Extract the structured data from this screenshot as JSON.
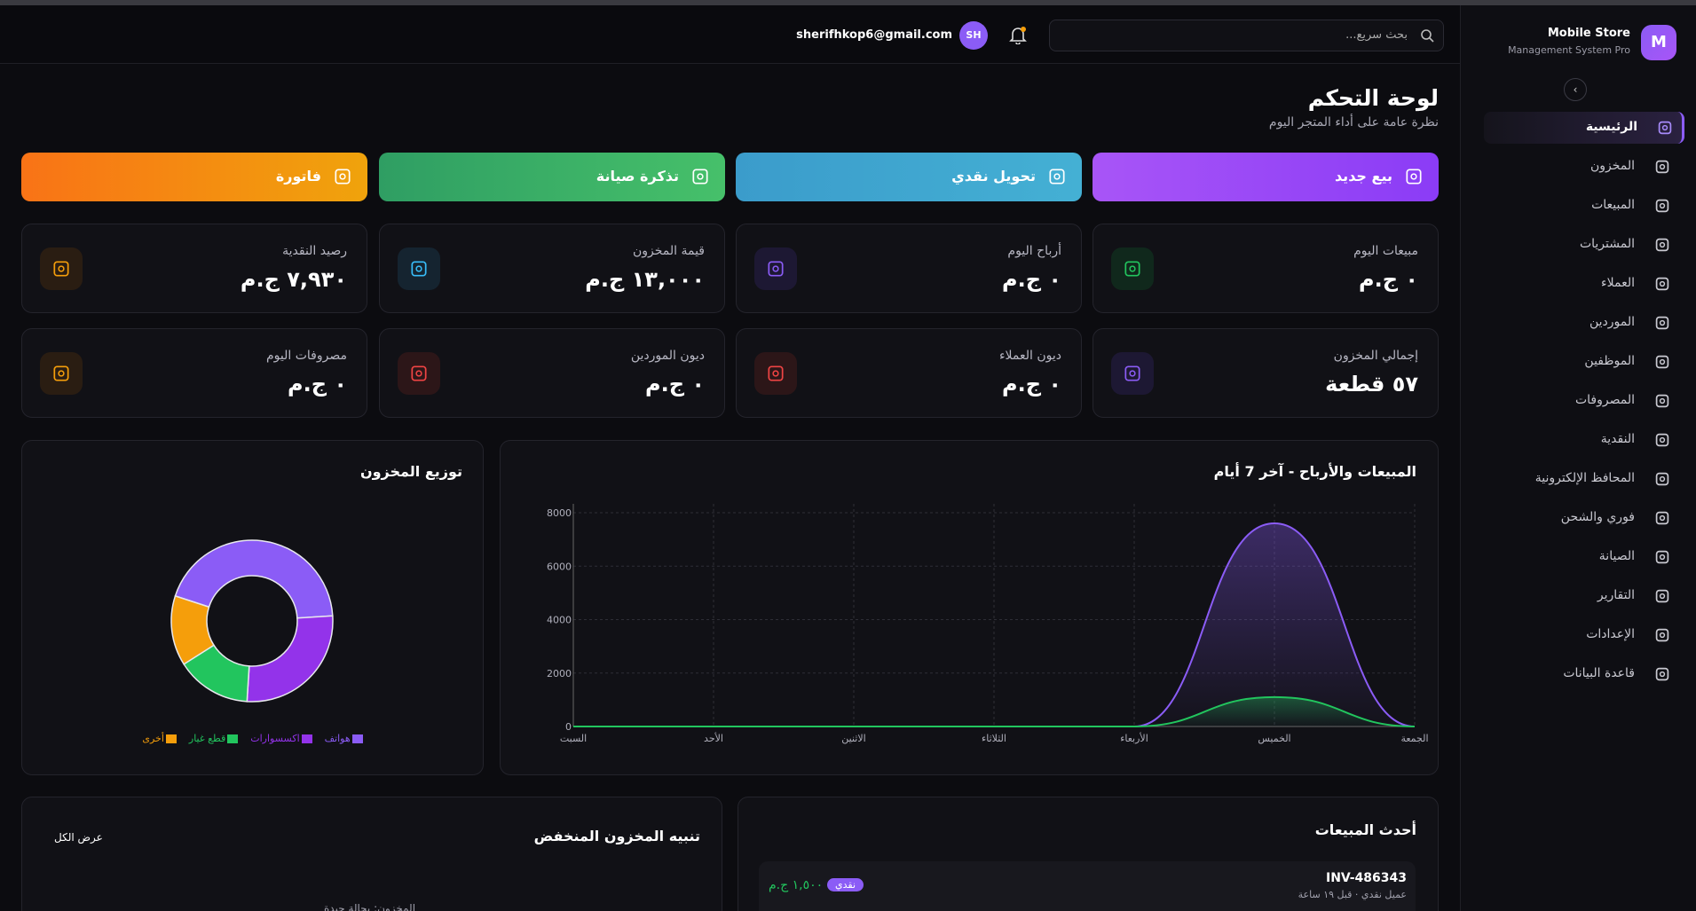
{
  "sidebar": {
    "logo": "M",
    "brand": "Mobile Store",
    "tagline": "Management System Pro",
    "nav": [
      "الرئيسية",
      "المخزون",
      "المبيعات",
      "المشتريات",
      "العملاء",
      "الموردين",
      "الموظفين",
      "المصروفات",
      "النقدية",
      "المحافظ الإلكترونية",
      "فوري والشحن",
      "الصيانة",
      "التقارير",
      "الإعدادات",
      "قاعدة البيانات"
    ]
  },
  "topbar": {
    "search_placeholder": "بحث سريع...",
    "email": "sherifhkop6@gmail.com",
    "avatar": "SH"
  },
  "header": {
    "title": "لوحة التحكم",
    "subtitle": "نظرة عامة على أداء المتجر اليوم"
  },
  "actions": [
    "بيع جديد",
    "تحويل نقدي",
    "تذكرة صيانة",
    "فاتورة"
  ],
  "stats": [
    {
      "label": "مبيعات اليوم",
      "value": "٠ ج.م"
    },
    {
      "label": "أرباح اليوم",
      "value": "٠ ج.م"
    },
    {
      "label": "قيمة المخزون",
      "value": "١٣,٠٠٠ ج.م"
    },
    {
      "label": "رصيد النقدية",
      "value": "٧,٩٣٠ ج.م"
    },
    {
      "label": "إجمالي المخزون",
      "value": "٥٧ قطعة"
    },
    {
      "label": "ديون العملاء",
      "value": "٠ ج.م"
    },
    {
      "label": "ديون الموردين",
      "value": "٠ ج.م"
    },
    {
      "label": "مصروفات اليوم",
      "value": "٠ ج.م"
    }
  ],
  "chart_data": [
    {
      "type": "line",
      "title": "المبيعات والأرباح - آخر 7 أيام",
      "categories": [
        "السبت",
        "الأحد",
        "الاثنين",
        "الثلاثاء",
        "الأربعاء",
        "الخميس",
        "الجمعة"
      ],
      "series": [
        {
          "color": "#8b5cf6",
          "values": [
            0,
            0,
            0,
            0,
            0,
            7600,
            0
          ]
        },
        {
          "color": "#22c55e",
          "values": [
            0,
            0,
            0,
            0,
            0,
            1100,
            0
          ]
        }
      ],
      "ylim": [
        0,
        8000
      ],
      "yticks": [
        0,
        2000,
        4000,
        6000,
        8000
      ],
      "grid": true,
      "smooth": true,
      "area": true
    },
    {
      "type": "pie",
      "title": "توزيع المخزون",
      "donut": true,
      "categories": [
        "هواتف",
        "اكسسوارات",
        "قطع غيار",
        "أخرى"
      ],
      "values": [
        44,
        27,
        15,
        14
      ],
      "colors": [
        "#8b5cf6",
        "#9333ea",
        "#22c55e",
        "#f59e0b"
      ]
    }
  ],
  "recent_sales": {
    "title": "أحدث المبيعات",
    "items": [
      {
        "invoice": "INV-486343",
        "meta": "عميل نقدي · قبل ١٩ ساعة",
        "method": "نقدي",
        "amount": "١,٥٠٠ ج.م"
      }
    ]
  },
  "low_stock": {
    "title": "تنبيه المخزون المنخفض",
    "view_all": "عرض الكل",
    "status": "المخزون: بحالة جيدة"
  }
}
